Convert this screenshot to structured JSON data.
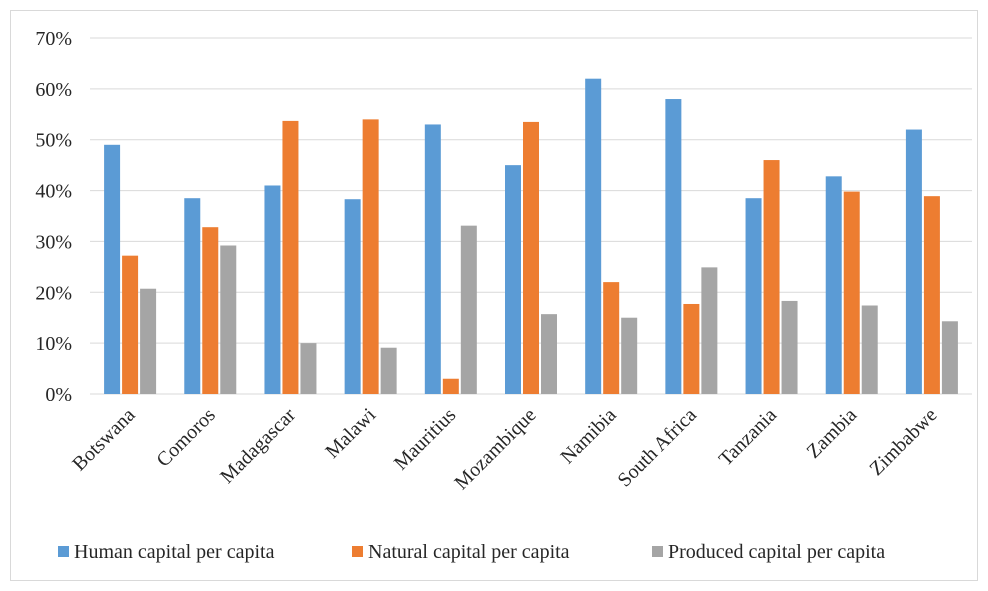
{
  "chart_data": {
    "type": "bar",
    "title": "",
    "xlabel": "",
    "ylabel": "",
    "ylim": [
      0,
      70
    ],
    "y_ticks": [
      "0%",
      "10%",
      "20%",
      "30%",
      "40%",
      "50%",
      "60%",
      "70%"
    ],
    "y_tick_values": [
      0,
      10,
      20,
      30,
      40,
      50,
      60,
      70
    ],
    "grid": true,
    "legend_position": "bottom",
    "categories": [
      "Botswana",
      "Comoros",
      "Madagascar",
      "Malawi",
      "Mauritius",
      "Mozambique",
      "Namibia",
      "South Africa",
      "Tanzania",
      "Zambia",
      "Zimbabwe"
    ],
    "series": [
      {
        "name": "Human capital per capita",
        "color": "#5b9bd5",
        "values": [
          49,
          38.5,
          41,
          38.3,
          53,
          45,
          62,
          58,
          38.5,
          42.8,
          52
        ]
      },
      {
        "name": "Natural capital per capita",
        "color": "#ed7d31",
        "values": [
          27.2,
          32.8,
          53.7,
          54,
          3,
          53.5,
          22,
          17.7,
          46,
          39.8,
          38.9
        ]
      },
      {
        "name": "Produced capital per capita",
        "color": "#a5a5a5",
        "values": [
          20.7,
          29.2,
          10,
          9.1,
          33.1,
          15.7,
          15,
          24.9,
          18.3,
          17.4,
          14.3
        ]
      }
    ]
  }
}
